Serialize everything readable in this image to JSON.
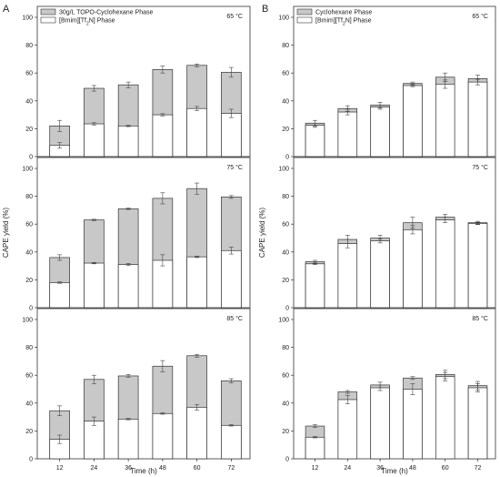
{
  "panel_letters": [
    "A",
    "B"
  ],
  "colors": {
    "outer_bar": "#c8c8c8",
    "inner_bar": "#ffffff",
    "stroke": "#333333",
    "error": "#444444"
  },
  "chart_data": [
    {
      "type": "bar",
      "panel": "A",
      "legend": [
        "30g/L TOPO-Cyclohexane Phase",
        "[Bmim][Tf2N] Phase"
      ],
      "legend_placement": "top-left",
      "xlabel": "Time (h)",
      "ylabel": "CAPE yield (%)",
      "categories": [
        "12",
        "24",
        "36",
        "48",
        "60",
        "72"
      ],
      "ylim": [
        0,
        100
      ],
      "yticks": [
        0,
        20,
        40,
        60,
        80,
        100
      ],
      "stacked_overlay": true,
      "subplots": [
        {
          "label": "65 °C",
          "series": [
            {
              "name": "30g/L TOPO-Cyclohexane Phase",
              "values": [
                22,
                49,
                51.5,
                62.5,
                65.5,
                60.5
              ],
              "errors": [
                4,
                2,
                2,
                2.5,
                1,
                3.5
              ]
            },
            {
              "name": "[Bmim][Tf2N] Phase",
              "values": [
                8,
                23.5,
                22,
                30,
                34.5,
                31
              ],
              "errors": [
                2,
                0.8,
                0.5,
                0.8,
                1.5,
                3
              ]
            }
          ]
        },
        {
          "label": "75 °C",
          "series": [
            {
              "name": "30g/L TOPO-Cyclohexane Phase",
              "values": [
                36,
                63,
                71,
                78.5,
                85.5,
                79.5
              ],
              "errors": [
                2,
                0.5,
                0.5,
                4,
                4,
                1
              ]
            },
            {
              "name": "[Bmim][Tf2N] Phase",
              "values": [
                18,
                32,
                31,
                34,
                36.5,
                41
              ],
              "errors": [
                0.5,
                0.5,
                0.8,
                4,
                0.5,
                2.5
              ]
            }
          ]
        },
        {
          "label": "85 °C",
          "series": [
            {
              "name": "30g/L TOPO-Cyclohexane Phase",
              "values": [
                34.5,
                57,
                59.5,
                66.5,
                74,
                56
              ],
              "errors": [
                3.5,
                3,
                1,
                4,
                1,
                1.5
              ]
            },
            {
              "name": "[Bmim][Tf2N] Phase",
              "values": [
                14,
                27,
                28.5,
                32.5,
                37,
                24
              ],
              "errors": [
                3,
                3,
                0.5,
                0.5,
                2,
                0.5
              ]
            }
          ]
        }
      ]
    },
    {
      "type": "bar",
      "panel": "B",
      "legend": [
        "Cyclohexane Phase",
        "[Bmim][Tf2N] Phase"
      ],
      "legend_placement": "top-left",
      "xlabel": "Time (h)",
      "ylabel": "CAPE yield (%)",
      "categories": [
        "12",
        "24",
        "36",
        "48",
        "60",
        "72"
      ],
      "ylim": [
        0,
        100
      ],
      "yticks": [
        0,
        20,
        40,
        60,
        80,
        100
      ],
      "stacked_overlay": true,
      "subplots": [
        {
          "label": "65 °C",
          "series": [
            {
              "name": "Cyclohexane Phase",
              "values": [
                24,
                34.5,
                37,
                52.5,
                57,
                56
              ],
              "errors": [
                2,
                2,
                2,
                1,
                3,
                2.5
              ]
            },
            {
              "name": "[Bmim][Tf2N] Phase",
              "values": [
                22.5,
                32,
                35.5,
                51,
                52,
                53.5
              ],
              "errors": [
                1.5,
                2,
                1.5,
                0.8,
                3,
                2
              ]
            }
          ]
        },
        {
          "label": "75 °C",
          "series": [
            {
              "name": "Cyclohexane Phase",
              "values": [
                33,
                49,
                50,
                61,
                65,
                61
              ],
              "errors": [
                1,
                3,
                2,
                4,
                2,
                1
              ]
            },
            {
              "name": "[Bmim][Tf2N] Phase",
              "values": [
                31.5,
                46,
                48,
                56,
                63,
                60.5
              ],
              "errors": [
                0.5,
                3,
                1.5,
                3,
                2,
                0.8
              ]
            }
          ]
        },
        {
          "label": "85 °C",
          "series": [
            {
              "name": "Cyclohexane Phase",
              "values": [
                23.5,
                48,
                53,
                58,
                60.5,
                52.5
              ],
              "errors": [
                1,
                1,
                2,
                1,
                3,
                3
              ]
            },
            {
              "name": "[Bmim][Tf2N] Phase",
              "values": [
                15.5,
                42.5,
                51,
                50,
                59,
                51
              ],
              "errors": [
                0.5,
                3,
                2,
                4,
                3,
                3
              ]
            }
          ]
        }
      ]
    }
  ]
}
